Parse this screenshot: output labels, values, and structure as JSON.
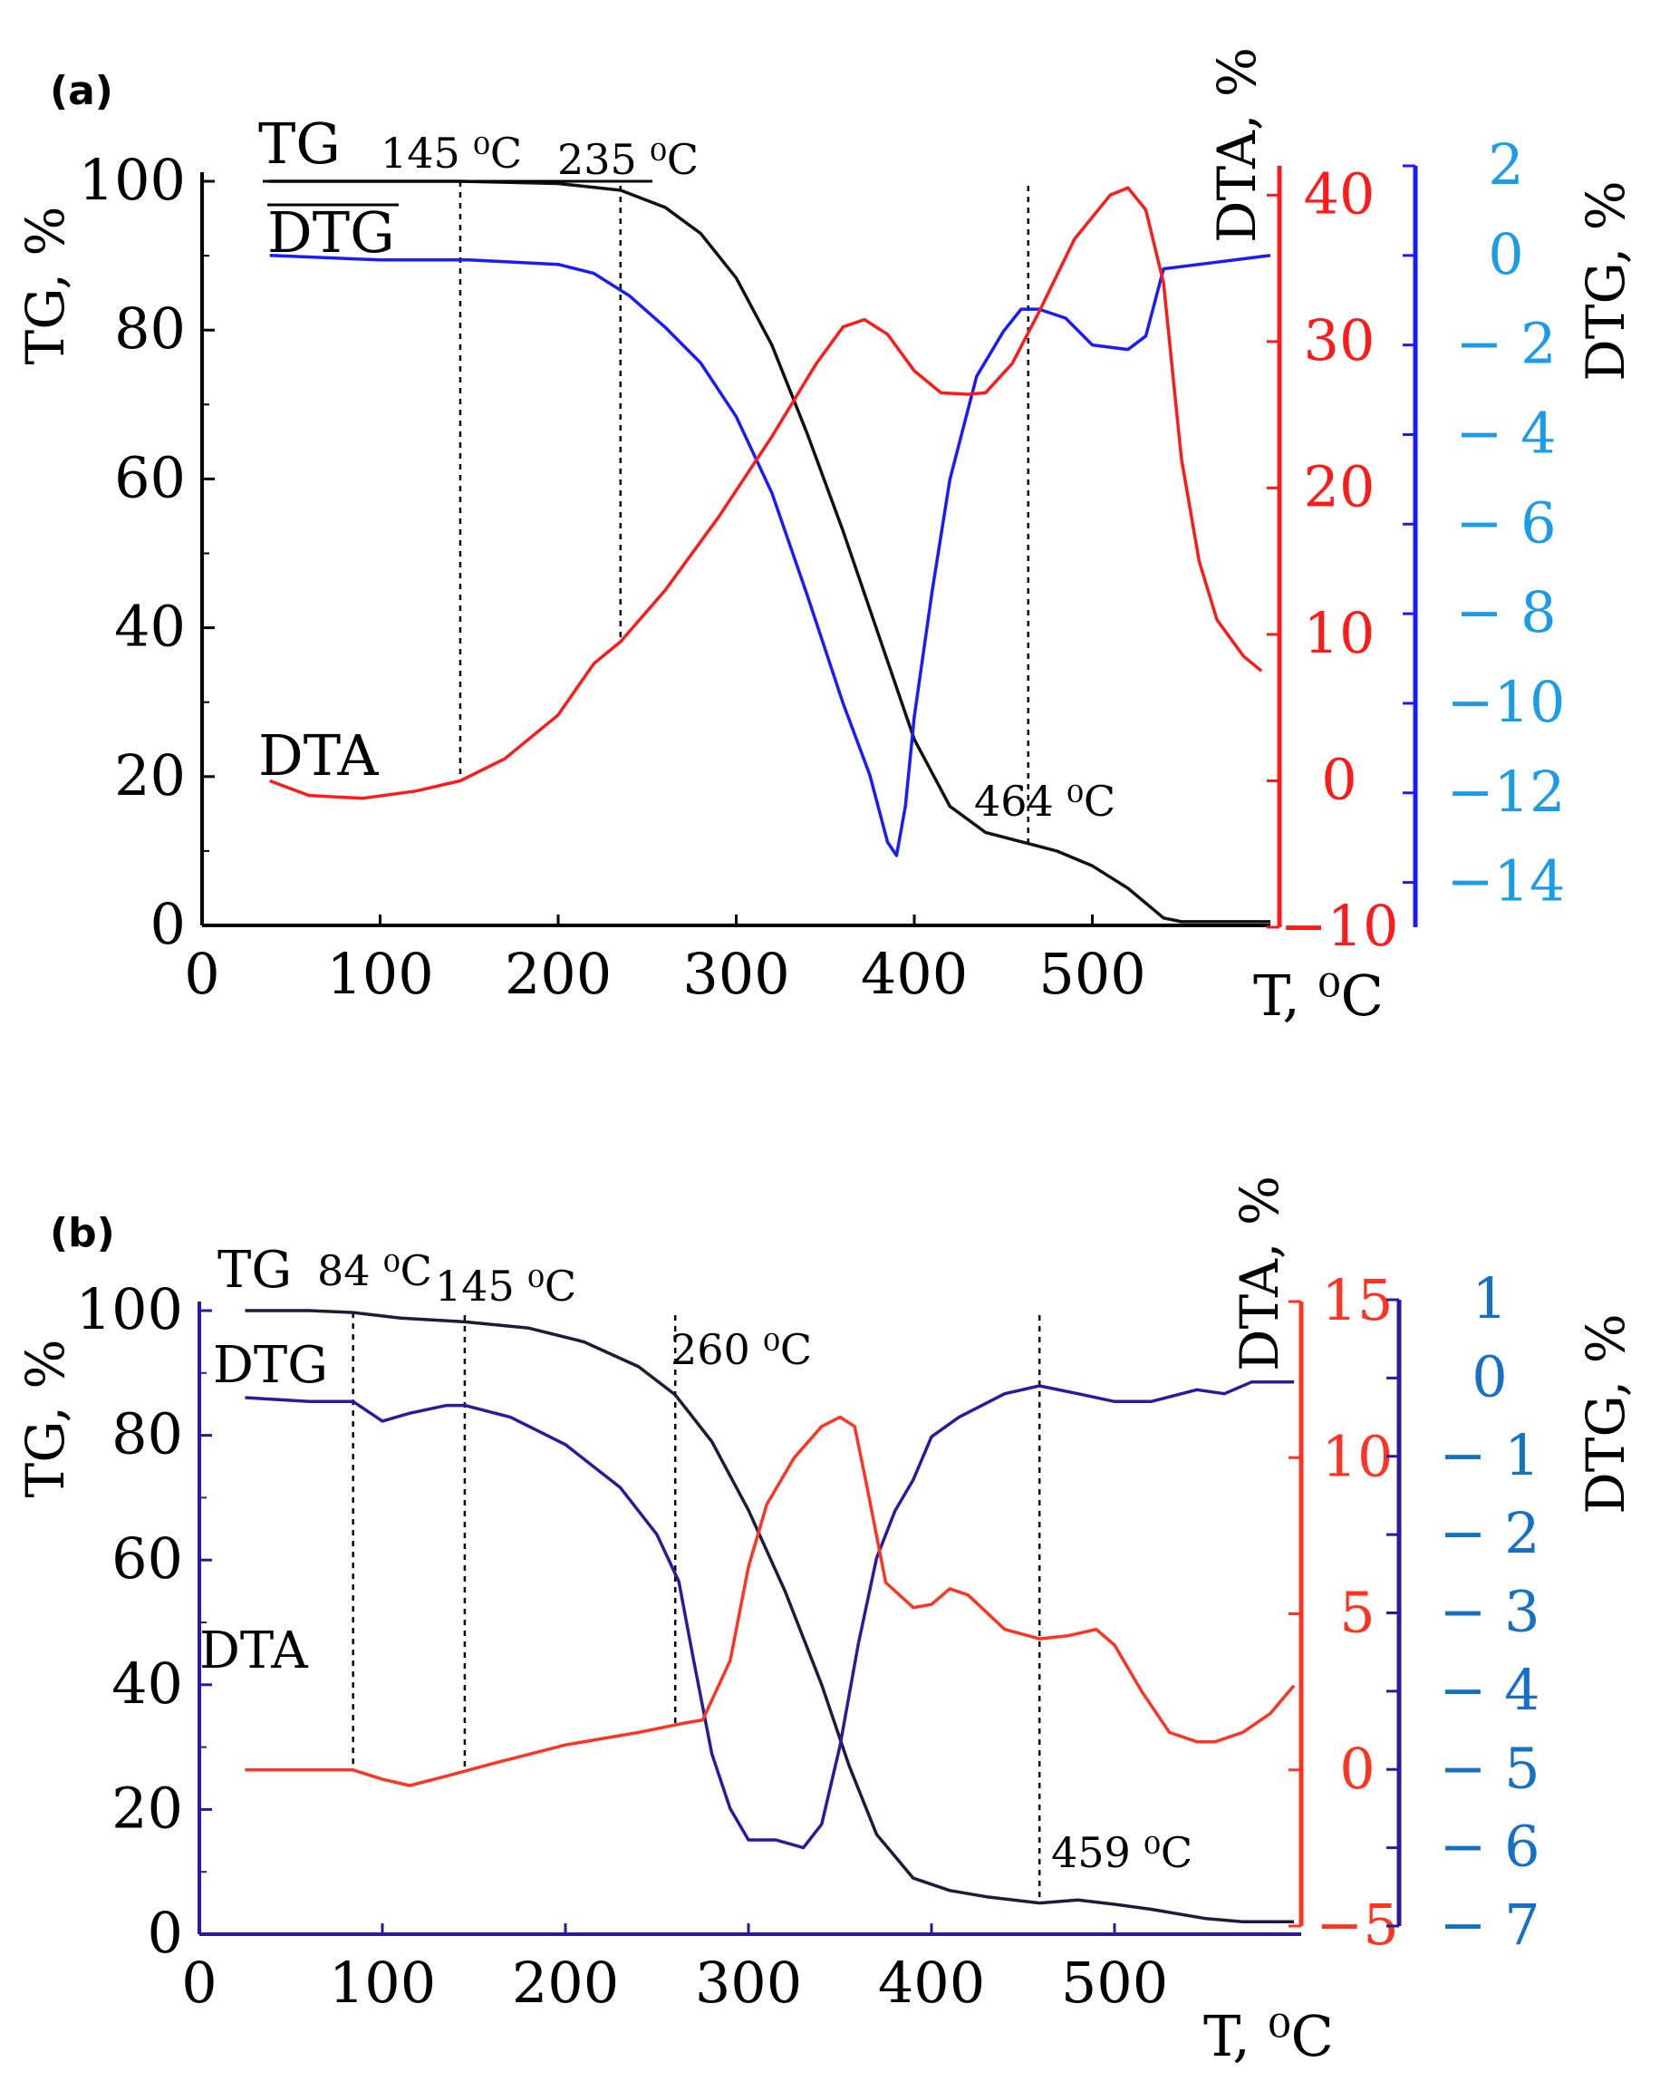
{
  "colors": {
    "tg": "#111111",
    "dta_a": "#ff1a1a",
    "dtg_a": "#1a1aff",
    "dtg_tick_a": "#1a9ce6",
    "dta_b": "#ff3322",
    "dtg_b": "#2a1a9c",
    "tg_b": "#1e1a3a",
    "dtg_tick_b": "#1670c4"
  },
  "chart_data": [
    {
      "type": "line",
      "panel": "(a)",
      "xlabel": "T, ⁰C",
      "xlim": [
        0,
        600
      ],
      "x_ticks": [
        "0",
        "100",
        "200",
        "300",
        "400",
        "500"
      ],
      "axes": {
        "tg": {
          "label": "TG, %",
          "lim": [
            0,
            100
          ],
          "ticks": [
            "0",
            "20",
            "40",
            "60",
            "80",
            "100"
          ]
        },
        "dta": {
          "label": "DTA, %",
          "lim": [
            -10,
            42
          ],
          "ticks": [
            "−10",
            "0",
            "10",
            "20",
            "30",
            "40"
          ]
        },
        "dtg": {
          "label": "DTG, %",
          "lim": [
            -15,
            2
          ],
          "ticks": [
            "2",
            "0",
            "− 2",
            "− 4",
            "− 6",
            "− 8",
            "−10",
            "−12",
            "−14"
          ]
        }
      },
      "series": [
        {
          "name": "TG",
          "axis": "tg",
          "color_key": "tg",
          "points": [
            [
              38,
              100
            ],
            [
              100,
              100
            ],
            [
              145,
              100
            ],
            [
              200,
              99.7
            ],
            [
              235,
              98.8
            ],
            [
              260,
              96.5
            ],
            [
              280,
              93
            ],
            [
              300,
              87
            ],
            [
              320,
              78
            ],
            [
              340,
              66
            ],
            [
              360,
              53
            ],
            [
              380,
              39
            ],
            [
              400,
              25
            ],
            [
              420,
              16
            ],
            [
              440,
              12.5
            ],
            [
              464,
              11
            ],
            [
              480,
              10
            ],
            [
              500,
              8
            ],
            [
              520,
              5
            ],
            [
              540,
              1
            ],
            [
              550,
              0.5
            ],
            [
              600,
              0.5
            ]
          ]
        },
        {
          "name": "DTG",
          "axis": "dtg",
          "color_key": "dtg_a",
          "points": [
            [
              38,
              0
            ],
            [
              100,
              -0.1
            ],
            [
              150,
              -0.1
            ],
            [
              200,
              -0.2
            ],
            [
              220,
              -0.4
            ],
            [
              240,
              -0.9
            ],
            [
              260,
              -1.6
            ],
            [
              280,
              -2.4
            ],
            [
              300,
              -3.6
            ],
            [
              320,
              -5.3
            ],
            [
              340,
              -7.6
            ],
            [
              360,
              -10
            ],
            [
              375,
              -11.6
            ],
            [
              385,
              -13.1
            ],
            [
              390,
              -13.4
            ],
            [
              395,
              -12.3
            ],
            [
              400,
              -10.3
            ],
            [
              410,
              -7.5
            ],
            [
              420,
              -5
            ],
            [
              435,
              -2.7
            ],
            [
              450,
              -1.7
            ],
            [
              460,
              -1.2
            ],
            [
              470,
              -1.2
            ],
            [
              485,
              -1.4
            ],
            [
              500,
              -2.0
            ],
            [
              520,
              -2.1
            ],
            [
              530,
              -1.8
            ],
            [
              540,
              -0.3
            ],
            [
              560,
              -0.2
            ],
            [
              600,
              0
            ]
          ]
        },
        {
          "name": "DTA",
          "axis": "dta",
          "color_key": "dta_a",
          "points": [
            [
              38,
              0
            ],
            [
              60,
              -1
            ],
            [
              90,
              -1.2
            ],
            [
              120,
              -0.7
            ],
            [
              145,
              0
            ],
            [
              170,
              1.5
            ],
            [
              200,
              4.5
            ],
            [
              220,
              8
            ],
            [
              235,
              9.5
            ],
            [
              260,
              13
            ],
            [
              290,
              18
            ],
            [
              320,
              23.5
            ],
            [
              345,
              28.5
            ],
            [
              360,
              31
            ],
            [
              372,
              31.5
            ],
            [
              385,
              30.5
            ],
            [
              400,
              28
            ],
            [
              415,
              26.5
            ],
            [
              430,
              26.4
            ],
            [
              440,
              26.5
            ],
            [
              455,
              28.5
            ],
            [
              470,
              32
            ],
            [
              490,
              37
            ],
            [
              510,
              40
            ],
            [
              520,
              40.5
            ],
            [
              530,
              39
            ],
            [
              540,
              34
            ],
            [
              550,
              22
            ],
            [
              560,
              15
            ],
            [
              570,
              11
            ],
            [
              585,
              8.5
            ],
            [
              595,
              7.5
            ]
          ]
        }
      ],
      "labels": [
        "TG",
        "DTG",
        "DTA"
      ],
      "annotations": [
        {
          "text": "145 ⁰C",
          "x": 145
        },
        {
          "text": "235 ⁰C",
          "x": 235
        },
        {
          "text": "464 ⁰C",
          "x": 464
        }
      ]
    },
    {
      "type": "line",
      "panel": "(b)",
      "xlabel": "T, ⁰C",
      "xlim": [
        0,
        600
      ],
      "x_ticks": [
        "0",
        "100",
        "200",
        "300",
        "400",
        "500"
      ],
      "axes": {
        "tg": {
          "label": "TG, %",
          "lim": [
            0,
            100
          ],
          "ticks": [
            "0",
            "20",
            "40",
            "60",
            "80",
            "100"
          ]
        },
        "dta": {
          "label": "DTA, %",
          "lim": [
            -5,
            15
          ],
          "ticks": [
            "−5",
            "0",
            "5",
            "10",
            "15"
          ]
        },
        "dtg": {
          "label": "DTG, %",
          "lim": [
            -7,
            1
          ],
          "ticks": [
            "1",
            "0",
            "− 1",
            "− 2",
            "− 3",
            "− 4",
            "− 5",
            "− 6",
            "− 7"
          ]
        }
      },
      "series": [
        {
          "name": "TG",
          "axis": "tg",
          "color_key": "tg_b",
          "points": [
            [
              25,
              100
            ],
            [
              60,
              100
            ],
            [
              84,
              99.7
            ],
            [
              110,
              98.8
            ],
            [
              145,
              98.2
            ],
            [
              180,
              97.2
            ],
            [
              210,
              95
            ],
            [
              240,
              91
            ],
            [
              260,
              86.5
            ],
            [
              280,
              79
            ],
            [
              300,
              68
            ],
            [
              320,
              55
            ],
            [
              340,
              40
            ],
            [
              355,
              27
            ],
            [
              370,
              16
            ],
            [
              390,
              9
            ],
            [
              410,
              7
            ],
            [
              430,
              6
            ],
            [
              459,
              5
            ],
            [
              480,
              5.5
            ],
            [
              500,
              4.8
            ],
            [
              520,
              4
            ],
            [
              550,
              2.5
            ],
            [
              570,
              2
            ],
            [
              598,
              2
            ]
          ]
        },
        {
          "name": "DTG",
          "axis": "dtg",
          "color_key": "dtg_b",
          "points": [
            [
              25,
              -0.25
            ],
            [
              60,
              -0.3
            ],
            [
              84,
              -0.3
            ],
            [
              100,
              -0.55
            ],
            [
              115,
              -0.45
            ],
            [
              135,
              -0.35
            ],
            [
              145,
              -0.35
            ],
            [
              170,
              -0.5
            ],
            [
              200,
              -0.85
            ],
            [
              230,
              -1.4
            ],
            [
              250,
              -2.0
            ],
            [
              262,
              -2.6
            ],
            [
              270,
              -3.6
            ],
            [
              280,
              -4.8
            ],
            [
              290,
              -5.5
            ],
            [
              300,
              -5.9
            ],
            [
              315,
              -5.9
            ],
            [
              330,
              -6.0
            ],
            [
              340,
              -5.7
            ],
            [
              350,
              -4.7
            ],
            [
              360,
              -3.4
            ],
            [
              370,
              -2.3
            ],
            [
              380,
              -1.7
            ],
            [
              390,
              -1.3
            ],
            [
              400,
              -0.75
            ],
            [
              415,
              -0.5
            ],
            [
              440,
              -0.2
            ],
            [
              459,
              -0.1
            ],
            [
              480,
              -0.2
            ],
            [
              500,
              -0.3
            ],
            [
              520,
              -0.3
            ],
            [
              545,
              -0.15
            ],
            [
              560,
              -0.2
            ],
            [
              575,
              -0.05
            ],
            [
              598,
              -0.05
            ]
          ]
        },
        {
          "name": "DTA",
          "axis": "dta",
          "color_key": "dta_b",
          "points": [
            [
              25,
              0
            ],
            [
              60,
              0
            ],
            [
              84,
              0
            ],
            [
              100,
              -0.3
            ],
            [
              115,
              -0.5
            ],
            [
              135,
              -0.2
            ],
            [
              160,
              0.2
            ],
            [
              200,
              0.8
            ],
            [
              240,
              1.2
            ],
            [
              265,
              1.5
            ],
            [
              275,
              1.6
            ],
            [
              290,
              3.5
            ],
            [
              300,
              6.5
            ],
            [
              310,
              8.5
            ],
            [
              325,
              10
            ],
            [
              340,
              11
            ],
            [
              350,
              11.3
            ],
            [
              358,
              11
            ],
            [
              365,
              9
            ],
            [
              375,
              6
            ],
            [
              390,
              5.2
            ],
            [
              400,
              5.3
            ],
            [
              410,
              5.8
            ],
            [
              420,
              5.6
            ],
            [
              440,
              4.5
            ],
            [
              459,
              4.2
            ],
            [
              475,
              4.3
            ],
            [
              490,
              4.5
            ],
            [
              500,
              4
            ],
            [
              515,
              2.5
            ],
            [
              530,
              1.2
            ],
            [
              545,
              0.9
            ],
            [
              555,
              0.9
            ],
            [
              570,
              1.2
            ],
            [
              585,
              1.8
            ],
            [
              598,
              2.7
            ]
          ]
        }
      ],
      "labels": [
        "TG",
        "DTG",
        "DTA"
      ],
      "annotations": [
        {
          "text": "84 ⁰C",
          "x": 84
        },
        {
          "text": "145 ⁰C",
          "x": 145
        },
        {
          "text": "260 ⁰C",
          "x": 260
        },
        {
          "text": "459 ⁰C",
          "x": 459
        }
      ]
    }
  ]
}
